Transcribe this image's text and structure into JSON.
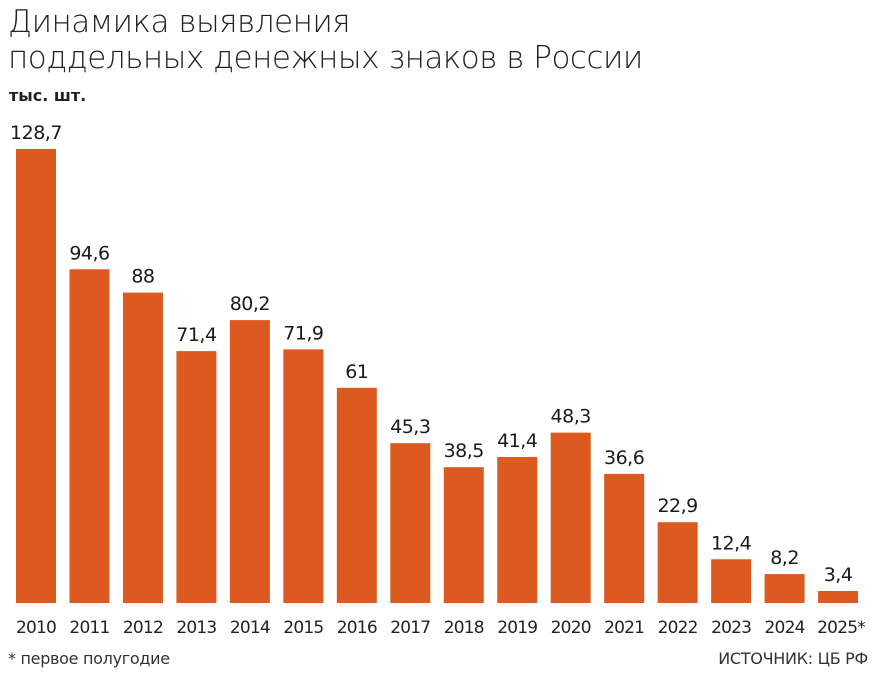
{
  "chart_data": {
    "type": "bar",
    "title": "Динамика выявления поддельных денежных знаков в России",
    "title_lines": [
      "Динамика выявления",
      "поддельных денежных знаков в России"
    ],
    "ylabel": "тыс. шт.",
    "xlabel": "",
    "categories": [
      "2010",
      "2011",
      "2012",
      "2013",
      "2014",
      "2015",
      "2016",
      "2017",
      "2018",
      "2019",
      "2020",
      "2021",
      "2022",
      "2023",
      "2024",
      "2025*"
    ],
    "values": [
      128.7,
      94.6,
      88,
      71.4,
      80.2,
      71.9,
      61,
      45.3,
      38.5,
      41.4,
      48.3,
      36.6,
      22.9,
      12.4,
      8.2,
      3.4
    ],
    "value_labels": [
      "128,7",
      "94,6",
      "88",
      "71,4",
      "80,2",
      "71,9",
      "61",
      "45,3",
      "38,5",
      "41,4",
      "48,3",
      "36,6",
      "22,9",
      "12,4",
      "8,2",
      "3,4"
    ],
    "ylim": [
      0,
      130
    ],
    "grid": false,
    "bar_color": "#dc5a20",
    "footnote": "* первое полугодие",
    "source": "ИСТОЧНИК: ЦБ РФ"
  }
}
